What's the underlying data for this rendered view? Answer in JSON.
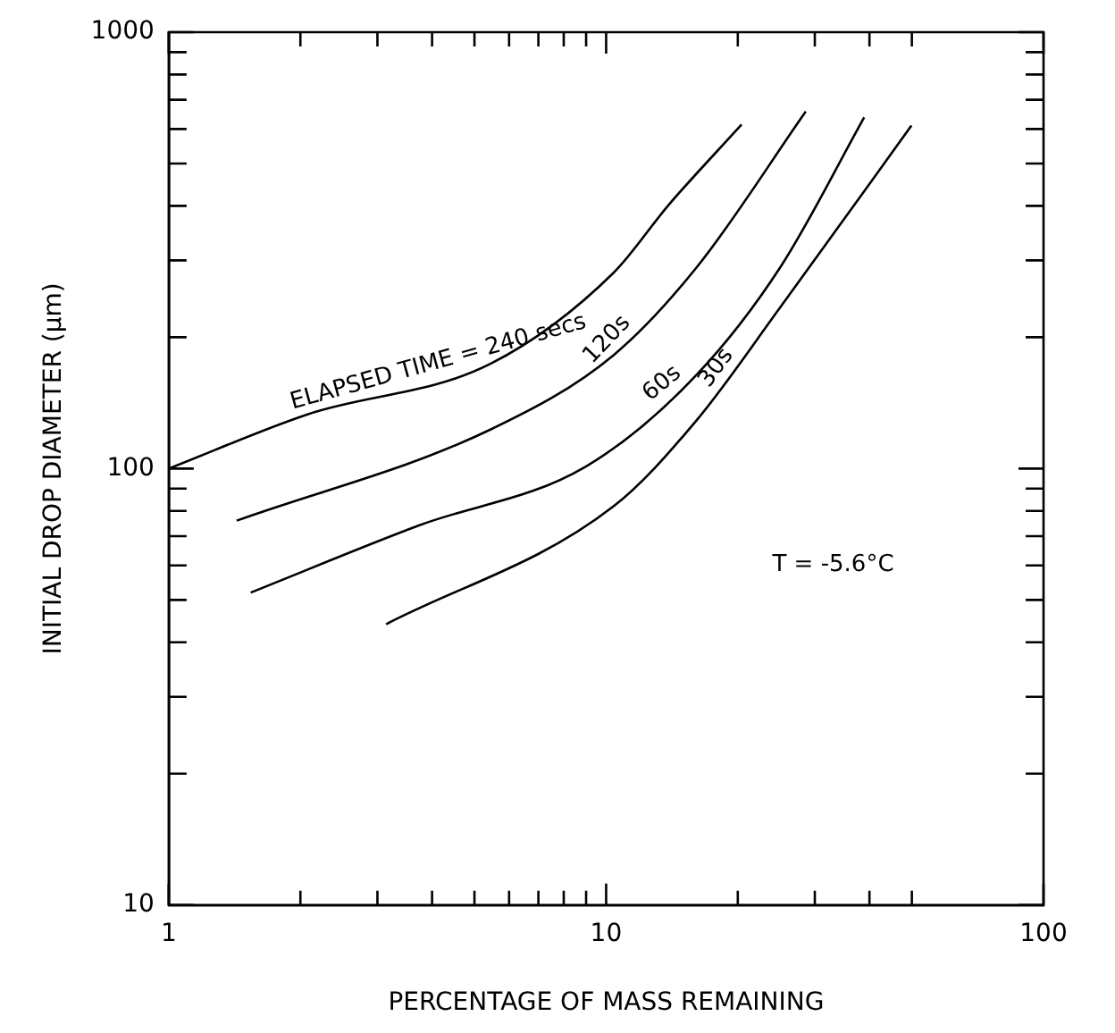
{
  "chart_data": {
    "type": "line",
    "xlabel": "PERCENTAGE OF MASS REMAINING",
    "ylabel": "INITIAL DROP DIAMETER (μm)",
    "log": "xy",
    "grid": false,
    "legend": false,
    "marker": "none",
    "line_style": "solid",
    "xlim": [
      1,
      100
    ],
    "ylim": [
      10,
      1000
    ],
    "xticks": [
      1,
      {
        "value": 2,
        "label": null
      },
      {
        "value": 3,
        "label": null
      },
      {
        "value": 4,
        "label": null
      },
      {
        "value": 5,
        "label": null
      },
      {
        "value": 6,
        "label": null
      },
      {
        "value": 7,
        "label": null
      },
      {
        "value": 8,
        "label": null
      },
      {
        "value": 9,
        "label": null
      },
      10,
      {
        "value": 20,
        "label": null
      },
      {
        "value": 30,
        "label": null
      },
      {
        "value": 40,
        "label": null
      },
      {
        "value": 50,
        "label": null
      },
      100
    ],
    "yticks": [
      10,
      {
        "value": 20,
        "label": null
      },
      {
        "value": 30,
        "label": null
      },
      {
        "value": 40,
        "label": null
      },
      {
        "value": 50,
        "label": null
      },
      {
        "value": 60,
        "label": null
      },
      {
        "value": 70,
        "label": null
      },
      {
        "value": 80,
        "label": null
      },
      {
        "value": 90,
        "label": null
      },
      100,
      {
        "value": 200,
        "label": null
      },
      {
        "value": 300,
        "label": null
      },
      {
        "value": 400,
        "label": null
      },
      {
        "value": 500,
        "label": null
      },
      {
        "value": 600,
        "label": null
      },
      {
        "value": 700,
        "label": null
      },
      {
        "value": 800,
        "label": null
      },
      {
        "value": 900,
        "label": null
      },
      1000
    ],
    "series": [
      {
        "name": "ELAPSED TIME = 240 secs",
        "color": "#000000",
        "x": [
          1.0,
          2.07,
          5.45,
          10.4,
          13.9,
          20.4
        ],
        "values": [
          100,
          133,
          174,
          281,
          402,
          614
        ]
      },
      {
        "name": "120s",
        "color": "#000000",
        "x": [
          1.43,
          5.45,
          10.4,
          16.1,
          28.6
        ],
        "values": [
          76,
          123,
          182,
          289,
          658
        ]
      },
      {
        "name": "60s",
        "color": "#000000",
        "x": [
          1.54,
          3.72,
          8.97,
          16.1,
          25.0,
          38.9
        ],
        "values": [
          52,
          74,
          101,
          164,
          289,
          638
        ]
      },
      {
        "name": "30s",
        "color": "#000000",
        "x": [
          3.14,
          10.4,
          16.1,
          25.0,
          49.9
        ],
        "values": [
          44,
          82,
          129,
          234,
          611
        ]
      }
    ],
    "annotations": [
      "T = -5.6°C"
    ]
  }
}
